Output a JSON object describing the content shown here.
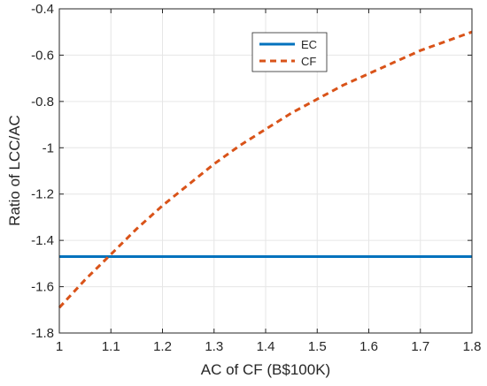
{
  "chart_data": {
    "type": "line",
    "xlabel": "AC of CF (B$100K)",
    "ylabel": "Ratio of LCC/AC",
    "xlim": [
      1,
      1.8
    ],
    "ylim": [
      -1.8,
      -0.4
    ],
    "xticks": [
      1,
      1.1,
      1.2,
      1.3,
      1.4,
      1.5,
      1.6,
      1.7,
      1.8
    ],
    "yticks": [
      -1.8,
      -1.6,
      -1.4,
      -1.2,
      -1,
      -0.8,
      -0.6,
      -0.4
    ],
    "xtick_labels": [
      "1",
      "1.1",
      "1.2",
      "1.3",
      "1.4",
      "1.5",
      "1.6",
      "1.7",
      "1.8"
    ],
    "ytick_labels": [
      "-1.8",
      "-1.6",
      "-1.4",
      "-1.2",
      "-1",
      "-0.8",
      "-0.6",
      "-0.4"
    ],
    "grid": true,
    "legend_position": "top-center",
    "series": [
      {
        "name": "EC",
        "color": "#0072BD",
        "style": "solid",
        "x": [
          1,
          1.1,
          1.2,
          1.3,
          1.4,
          1.5,
          1.6,
          1.7,
          1.8
        ],
        "y": [
          -1.47,
          -1.47,
          -1.47,
          -1.47,
          -1.47,
          -1.47,
          -1.47,
          -1.47,
          -1.47
        ]
      },
      {
        "name": "CF",
        "color": "#D95319",
        "style": "dashed",
        "x": [
          1,
          1.05,
          1.1,
          1.15,
          1.2,
          1.25,
          1.3,
          1.35,
          1.4,
          1.45,
          1.5,
          1.55,
          1.6,
          1.65,
          1.7,
          1.75,
          1.8
        ],
        "y": [
          -1.69,
          -1.57,
          -1.46,
          -1.35,
          -1.25,
          -1.16,
          -1.07,
          -0.99,
          -0.92,
          -0.85,
          -0.79,
          -0.73,
          -0.68,
          -0.63,
          -0.58,
          -0.54,
          -0.5
        ]
      }
    ]
  }
}
